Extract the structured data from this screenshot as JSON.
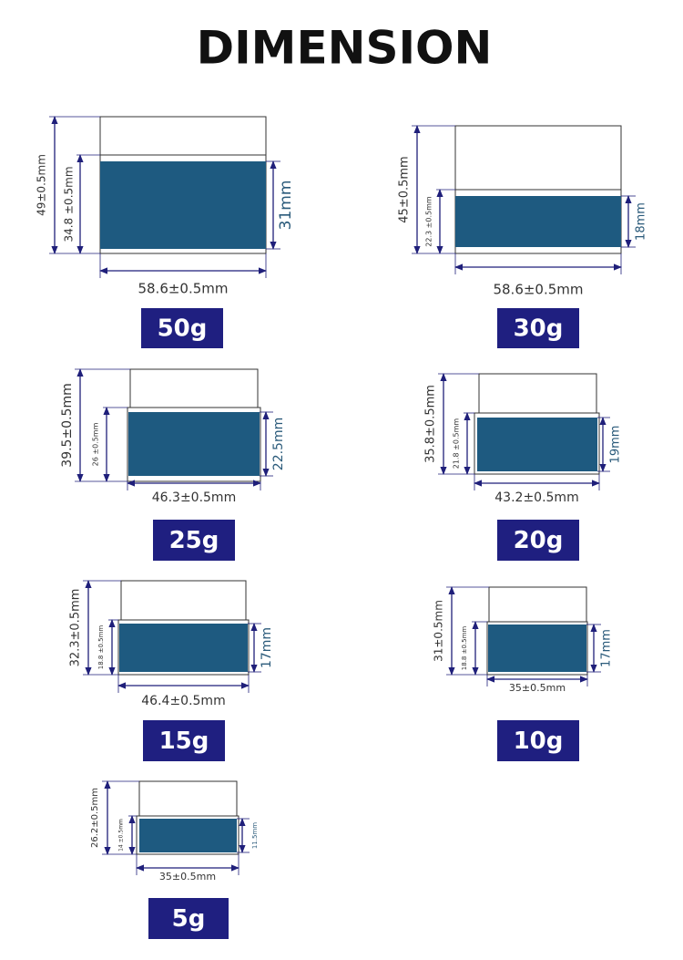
{
  "title": "DIMENSION",
  "items": [
    {
      "weight": "50g",
      "total_height": "49±0.5mm",
      "body_height": "34.8 ±0.5mm",
      "label_height": "31mm",
      "width": "58.6±0.5mm"
    },
    {
      "weight": "30g",
      "total_height": "45±0.5mm",
      "body_height": "22.3 ±0.5mm",
      "label_height": "18mm",
      "width": "58.6±0.5mm"
    },
    {
      "weight": "25g",
      "total_height": "39.5±0.5mm",
      "body_height": "26 ±0.5mm",
      "label_height": "22.5mm",
      "width": "46.3±0.5mm"
    },
    {
      "weight": "20g",
      "total_height": "35.8±0.5mm",
      "body_height": "21.8 ±0.5mm",
      "label_height": "19mm",
      "width": "43.2±0.5mm"
    },
    {
      "weight": "15g",
      "total_height": "32.3±0.5mm",
      "body_height": "18.8 ±0.5mm",
      "label_height": "17mm",
      "width": "46.4±0.5mm"
    },
    {
      "weight": "10g",
      "total_height": "31±0.5mm",
      "body_height": "18.8 ±0.5mm",
      "label_height": "17mm",
      "width": "35±0.5mm"
    },
    {
      "weight": "5g",
      "total_height": "26.2±0.5mm",
      "body_height": "14 ±0.5mm",
      "label_height": "11.5mm",
      "width": "35±0.5mm"
    }
  ]
}
